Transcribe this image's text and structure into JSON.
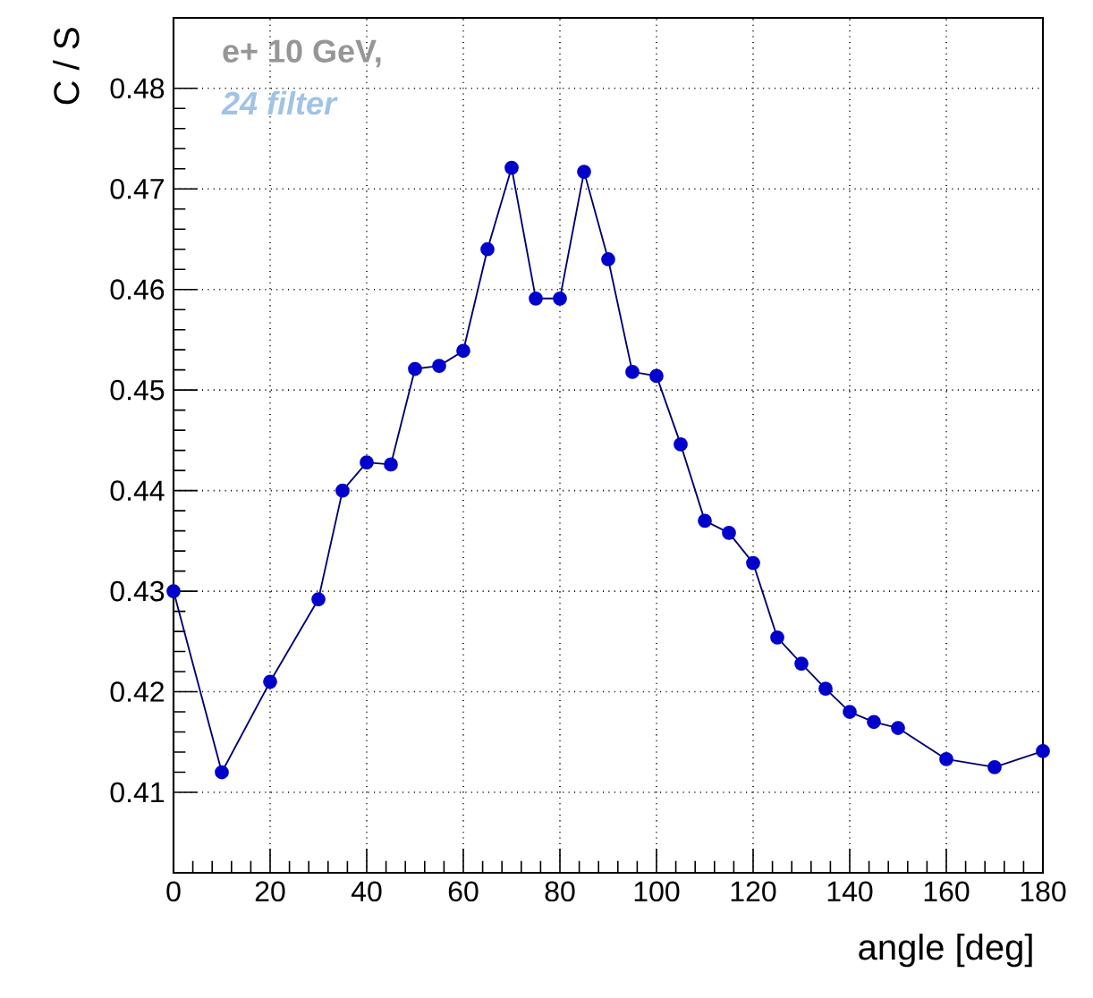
{
  "chart_data": {
    "type": "line",
    "xlabel": "angle [deg]",
    "ylabel": "C / S",
    "annotations": [
      "e+ 10 GeV,",
      "24 filter"
    ],
    "x": [
      0,
      10,
      20,
      30,
      35,
      40,
      45,
      50,
      55,
      60,
      65,
      70,
      75,
      80,
      85,
      90,
      95,
      100,
      105,
      110,
      115,
      120,
      125,
      130,
      135,
      140,
      145,
      150,
      160,
      170,
      180
    ],
    "series": [
      {
        "color": "#0000cc",
        "values": [
          0.43,
          0.412,
          0.421,
          0.4292,
          0.44,
          0.4428,
          0.4426,
          0.4521,
          0.4524,
          0.4539,
          0.464,
          0.4721,
          0.4591,
          0.4591,
          0.4717,
          0.463,
          0.4518,
          0.4514,
          0.4446,
          0.437,
          0.4358,
          0.4328,
          0.4254,
          0.4228,
          0.4203,
          0.418,
          0.417,
          0.4164,
          0.4133,
          0.4125,
          0.4141
        ]
      }
    ],
    "xlim": [
      0,
      180
    ],
    "ylim": [
      0.402,
      0.487
    ],
    "xticks": [
      0,
      20,
      40,
      60,
      80,
      100,
      120,
      140,
      160,
      180
    ],
    "yticks": [
      0.41,
      0.42,
      0.43,
      0.44,
      0.45,
      0.46,
      0.47,
      0.48
    ],
    "grid": true,
    "marker": "circle",
    "line_style": "solid"
  }
}
